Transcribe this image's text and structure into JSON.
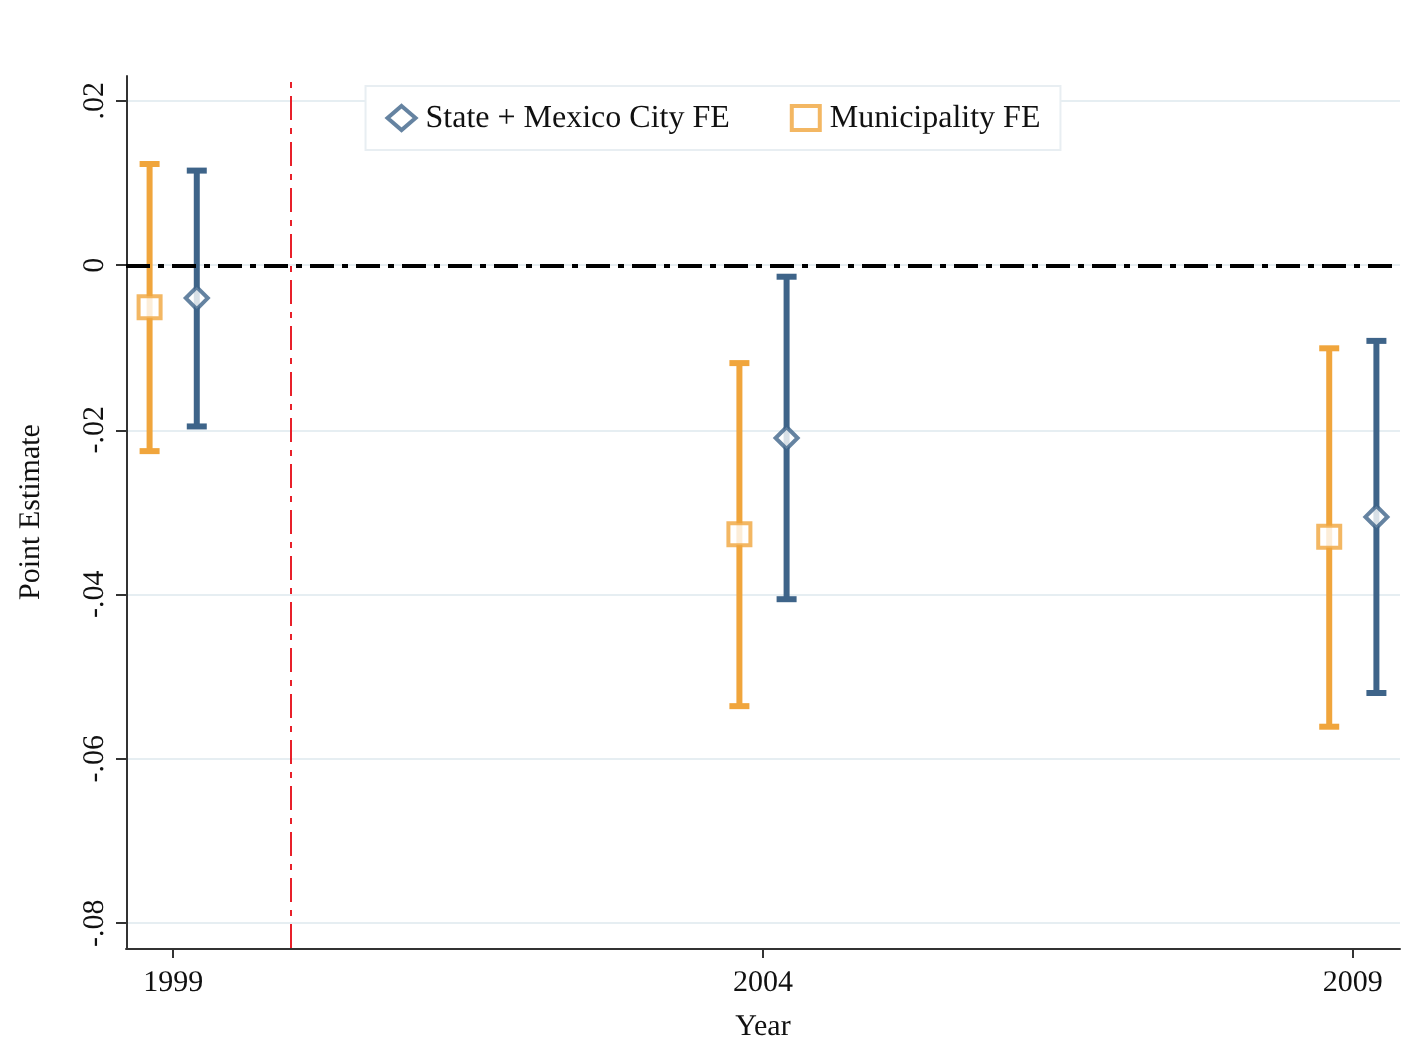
{
  "chart_data": {
    "type": "scatter",
    "xlabel": "Year",
    "ylabel": "Point Estimate",
    "xlim": [
      1998.6,
      2009.4
    ],
    "xticks": [
      1999,
      2004,
      2009
    ],
    "ylim": [
      -0.083,
      0.023
    ],
    "yticks": [
      {
        "value": 0.02,
        "label": ".02"
      },
      {
        "value": 0,
        "label": "0"
      },
      {
        "value": -0.02,
        "label": "-.02"
      },
      {
        "value": -0.04,
        "label": "-.04"
      },
      {
        "value": -0.06,
        "label": "-.06"
      },
      {
        "value": -0.08,
        "label": "-.08"
      }
    ],
    "series": [
      {
        "name": "State + Mexico City FE",
        "color": "#3e6489",
        "marker": "diamond",
        "x": [
          1999.2,
          2004.2,
          2009.2
        ],
        "values": [
          -0.004,
          -0.021,
          -0.0306
        ],
        "errors": [
          [
            -0.0196,
            0.0115
          ],
          [
            -0.0406,
            -0.0014
          ],
          [
            -0.052,
            -0.0092
          ]
        ]
      },
      {
        "name": "Municipality FE",
        "color": "#f0a53c",
        "marker": "square",
        "x": [
          1998.8,
          2003.8,
          2008.8
        ],
        "values": [
          -0.0051,
          -0.0327,
          -0.033
        ],
        "errors": [
          [
            -0.0226,
            0.0123
          ],
          [
            -0.0536,
            -0.0119
          ],
          [
            -0.0561,
            -0.0101
          ]
        ]
      }
    ],
    "ref_lines": [
      {
        "axis": "y",
        "value": 0,
        "color": "#000000",
        "line_style": "dashed"
      },
      {
        "axis": "x",
        "value": 2000,
        "color": "#e8202a",
        "line_style": "dashed"
      }
    ],
    "grid": "y",
    "legend": "top"
  }
}
